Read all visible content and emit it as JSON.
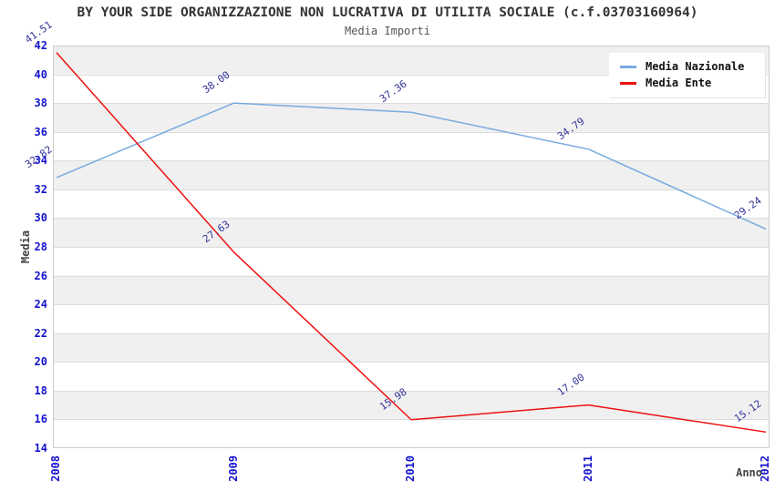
{
  "header": {
    "title": "BY YOUR SIDE ORGANIZZAZIONE NON LUCRATIVA DI UTILITA SOCIALE (c.f.03703160964)",
    "subtitle": "Media Importi"
  },
  "chart_data": {
    "type": "line",
    "title": "BY YOUR SIDE ORGANIZZAZIONE NON LUCRATIVA DI UTILITA SOCIALE (c.f.03703160964)",
    "subtitle": "Media Importi",
    "xlabel": "Anno",
    "ylabel": "Media",
    "categories": [
      "2008",
      "2009",
      "2010",
      "2011",
      "2012"
    ],
    "ylim": [
      14,
      42
    ],
    "ytick_step": 2,
    "grid": "horizontal",
    "legend_position": "top-right",
    "series": [
      {
        "name": "Media Nazionale",
        "color": "#79abdf",
        "values": [
          32.82,
          38.0,
          37.36,
          34.79,
          29.24
        ],
        "labels": [
          "32.82",
          "38.00",
          "37.36",
          "34.79",
          "29.24"
        ]
      },
      {
        "name": "Media Ente",
        "color": "#ee1111",
        "values": [
          41.51,
          27.63,
          15.98,
          17.0,
          15.12
        ],
        "labels": [
          "41.51",
          "27.63",
          "15.98",
          "17.00",
          "15.12"
        ]
      }
    ],
    "colors": {
      "tick_label": "#1414cc",
      "point_label": "#333399",
      "band_fill": "#f0f0f0",
      "grid_line": "#dcdcdc",
      "plot_border": "#cccccc",
      "title_text": "#333333",
      "subtitle_text": "#555555",
      "axis_name_text": "#444444",
      "legend_bg": "#ffffff"
    }
  }
}
